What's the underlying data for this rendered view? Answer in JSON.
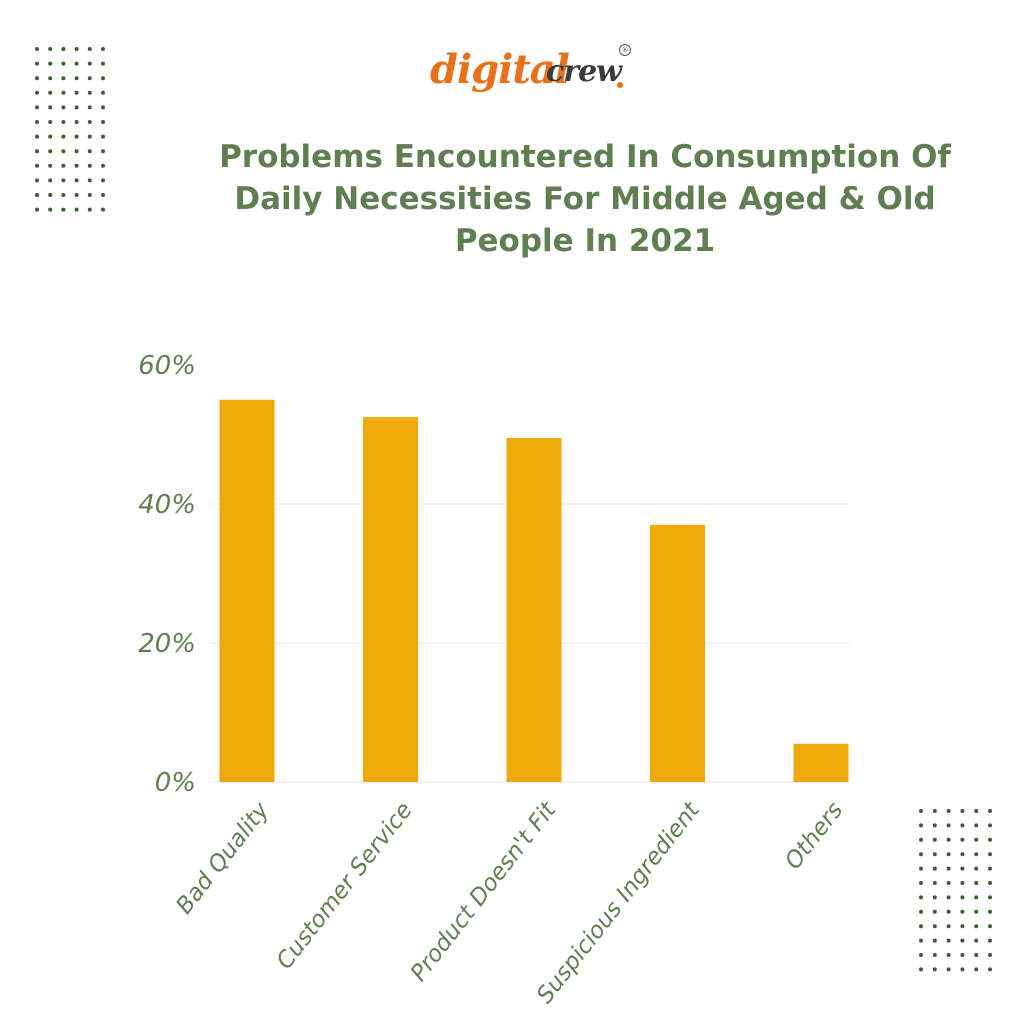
{
  "brand": {
    "name_part1": "digital",
    "name_part2": "crew",
    "registered_mark": "®",
    "colors": {
      "orange": "#e8711a",
      "dark": "#3a3a3a"
    }
  },
  "title": "Problems Encountered In Consumption Of Daily Necessities For Middle Aged & Old People In 2021",
  "colors": {
    "title": "#5f7f52",
    "bar": "#f0a90a",
    "axis_text": "#5f7f52",
    "grid": "#e8e8e8",
    "dots": "#3d5e33"
  },
  "chart_data": {
    "type": "bar",
    "title": "Problems Encountered In Consumption Of Daily Necessities For Middle Aged & Old People In 2021",
    "categories": [
      "Bad Quality",
      "Customer Service",
      "Product Doesn't Fit",
      "Suspicious Ingredient",
      "Others"
    ],
    "values": [
      55,
      52.5,
      49.5,
      37,
      5.5
    ],
    "unit": "%",
    "ylim": [
      0,
      60
    ],
    "yticks": [
      0,
      20,
      40,
      60
    ],
    "ytick_labels": [
      "0%",
      "20%",
      "40%",
      "60%"
    ],
    "xlabel": "",
    "ylabel": "",
    "grid": true,
    "legend": "none"
  }
}
